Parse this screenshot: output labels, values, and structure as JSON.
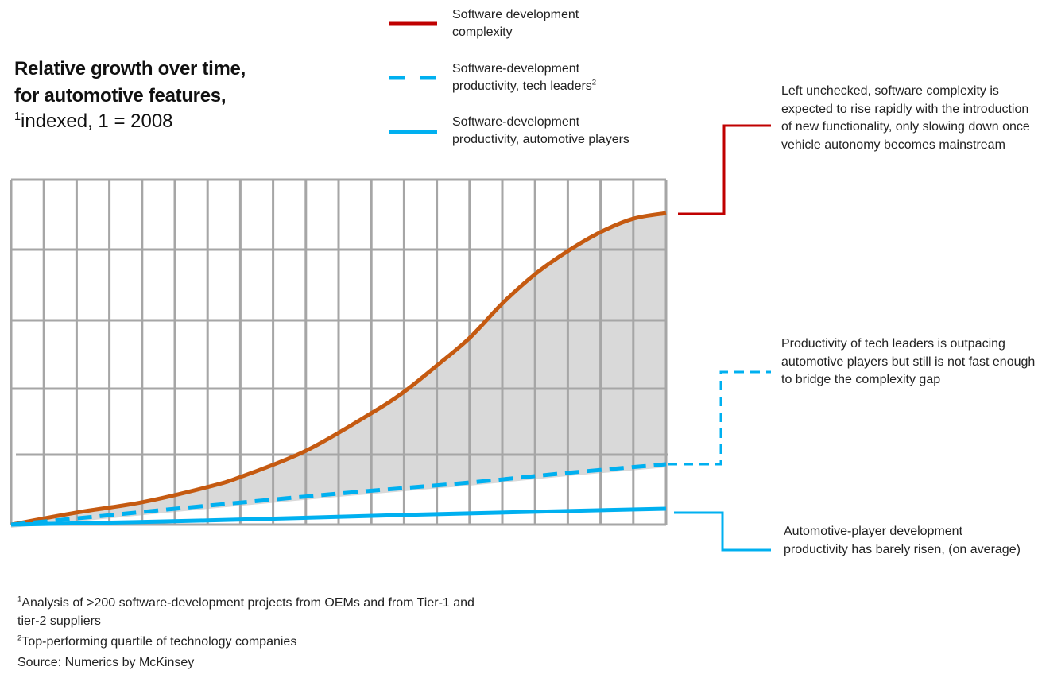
{
  "title": {
    "line1": "Relative growth over time,",
    "line2": "for automotive features,",
    "sub_sup": "1",
    "sub_text": "indexed,  1 = 2008"
  },
  "legend": [
    {
      "line1": "Software development",
      "line2": "complexity",
      "sup": "",
      "color": "#c00000",
      "style": "solid"
    },
    {
      "line1": "Software-development",
      "line2": "productivity, tech leaders",
      "sup": "2",
      "color": "#00b0f0",
      "style": "dashed"
    },
    {
      "line1": "Software-development",
      "line2": "productivity, automotive players",
      "sup": "",
      "color": "#00b0f0",
      "style": "solid"
    }
  ],
  "annotations": [
    {
      "text": "Left unchecked, software complexity is expected to rise rapidly with the introduction of new functionality, only slowing down once vehicle autonomy becomes mainstream",
      "color": "#c00000",
      "style": "solid"
    },
    {
      "text": "Productivity of tech leaders is outpacing automotive players but still is not fast enough to bridge the complexity gap",
      "color": "#00b0f0",
      "style": "dashed"
    },
    {
      "text": "Automotive-player development productivity has barely risen, (on average)",
      "color": "#00b0f0",
      "style": "solid"
    }
  ],
  "footnotes": [
    {
      "sup": "1",
      "text": "Analysis of >200 software-development projects from OEMs and from Tier-1 and"
    },
    {
      "sup": "",
      "text": "tier-2 suppliers"
    },
    {
      "sup": "2",
      "text": "Top-performing quartile of technology companies"
    },
    {
      "sup": "",
      "text": "Source: Numerics by McKinsey"
    }
  ],
  "chart_data": {
    "type": "line",
    "title": "Relative growth over time, for automotive features, indexed, 1 = 2008",
    "xlabel": "",
    "ylabel": "",
    "grid": true,
    "axis_labels_shown": false,
    "legend_placement": "top",
    "gap_fill_color": "#d9d9d9",
    "series": [
      {
        "name": "Software development complexity",
        "color": "#c55a11",
        "x": [
          0,
          2,
          4,
          6,
          7,
          9,
          11,
          12,
          13,
          14,
          15,
          16,
          17,
          18,
          19,
          20
        ],
        "y": [
          0,
          3.5,
          6.5,
          10.9,
          13.8,
          21.4,
          32.3,
          38.5,
          46.1,
          54.1,
          64.1,
          72.6,
          79.3,
          84.8,
          88.7,
          90.3
        ]
      },
      {
        "name": "Software-development productivity, tech leaders",
        "color": "#00b0f0",
        "dashed": true,
        "x": [
          0,
          2,
          6,
          10,
          14,
          17,
          20
        ],
        "y": [
          0,
          1.8,
          5.5,
          9,
          12.2,
          15,
          17.5
        ]
      },
      {
        "name": "Software-development productivity, automotive players",
        "color": "#00b0f0",
        "x": [
          0,
          6,
          12,
          20
        ],
        "y": [
          0,
          1.2,
          2.8,
          4.6
        ]
      }
    ]
  }
}
